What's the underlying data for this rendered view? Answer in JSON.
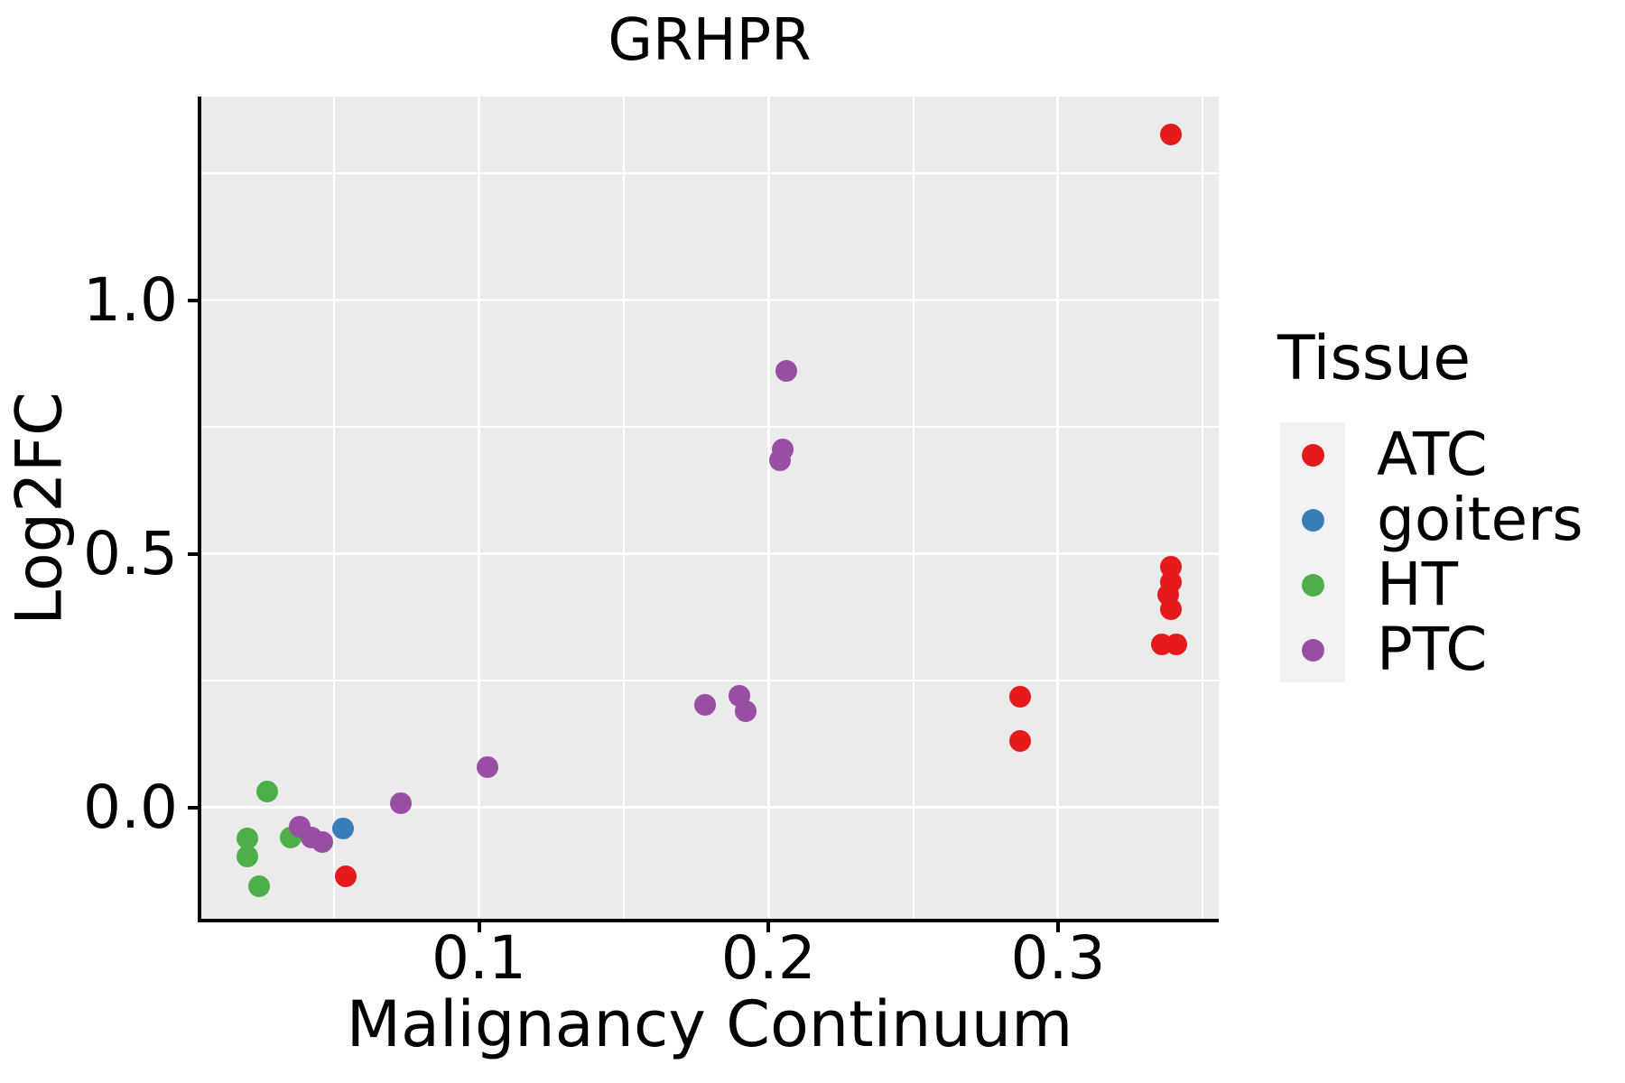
{
  "chart_data": {
    "type": "scatter",
    "title": "GRHPR",
    "xlabel": "Malignancy Continuum",
    "ylabel": "Log2FC",
    "legend_title": "Tissue",
    "legend_position": "right",
    "grid": true,
    "xlim": [
      0.0038,
      0.3555
    ],
    "ylim": [
      -0.2226,
      1.4018
    ],
    "x_ticks": {
      "values": [
        0.1,
        0.2,
        0.3
      ],
      "labels": [
        "0.1",
        "0.2",
        "0.3"
      ],
      "minor": [
        0.05,
        0.15,
        0.25,
        0.35
      ]
    },
    "y_ticks": {
      "values": [
        0.0,
        0.5,
        1.0
      ],
      "labels": [
        "0.0",
        "0.5",
        "1.0"
      ],
      "minor": [
        0.25,
        0.75,
        1.25
      ]
    },
    "style": {
      "panel_bg": "#EBEBEB",
      "grid_color": "#FFFFFF",
      "axis_color": "#000000",
      "text_color": "#000000",
      "legend_key_bg": "#F2F2F2"
    },
    "series": [
      {
        "name": "ATC",
        "color": "#E41A1C",
        "points": [
          [
            0.339,
            1.327
          ],
          [
            0.339,
            0.474
          ],
          [
            0.339,
            0.445
          ],
          [
            0.338,
            0.419
          ],
          [
            0.339,
            0.391
          ],
          [
            0.336,
            0.321
          ],
          [
            0.341,
            0.321
          ],
          [
            0.287,
            0.219
          ],
          [
            0.287,
            0.132
          ],
          [
            0.054,
            -0.135
          ]
        ]
      },
      {
        "name": "goiters",
        "color": "#377EB8",
        "points": [
          [
            0.053,
            -0.042
          ]
        ]
      },
      {
        "name": "HT",
        "color": "#4DAF4A",
        "points": [
          [
            0.027,
            0.032
          ],
          [
            0.02,
            -0.061
          ],
          [
            0.02,
            -0.096
          ],
          [
            0.035,
            -0.059
          ],
          [
            0.024,
            -0.155
          ]
        ]
      },
      {
        "name": "PTC",
        "color": "#984EA3",
        "points": [
          [
            0.038,
            -0.038
          ],
          [
            0.042,
            -0.059
          ],
          [
            0.046,
            -0.067
          ],
          [
            0.073,
            0.009
          ],
          [
            0.103,
            0.079
          ],
          [
            0.178,
            0.203
          ],
          [
            0.19,
            0.221
          ],
          [
            0.192,
            0.191
          ],
          [
            0.206,
            0.861
          ],
          [
            0.205,
            0.707
          ],
          [
            0.204,
            0.685
          ]
        ]
      }
    ]
  }
}
